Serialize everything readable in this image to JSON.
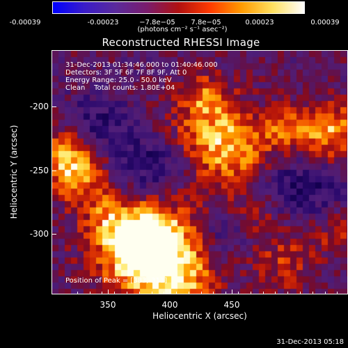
{
  "colorbar": {
    "tick_labels": [
      "-0.00039",
      "-0.00023",
      "−7.8e−05",
      "7.8e−05",
      "0.00023",
      "0.00039"
    ],
    "units": "(photons cm⁻² s⁻¹ asec⁻²)",
    "colors": [
      "#0000ff",
      "#3a1cc8",
      "#5a2a9c",
      "#7a1c6c",
      "#b01010",
      "#ff3a00",
      "#ff9a00",
      "#ffe060",
      "#ffffff"
    ]
  },
  "plot": {
    "title": "Reconstructed RHESSI Image",
    "info_lines": [
      "31-Dec-2013 01:34:46.000 to 01:40:46.000",
      "Detectors: 3F 5F 6F 7F 8F 9F, Att 0",
      "Energy Range: 25.0 - 50.0 keV",
      "Clean    Total counts: 1.80E+04"
    ],
    "peak_label": "Position of Peak = [383,-311]",
    "xlabel": "Heliocentric X (arcsec)",
    "ylabel": "Heliocentric Y (arcsec)",
    "x_ticks": [
      "350",
      "400",
      "450"
    ],
    "y_ticks": [
      "-200",
      "-250",
      "-300"
    ]
  },
  "footer": {
    "timestamp": "31-Dec-2013 05:18"
  }
}
